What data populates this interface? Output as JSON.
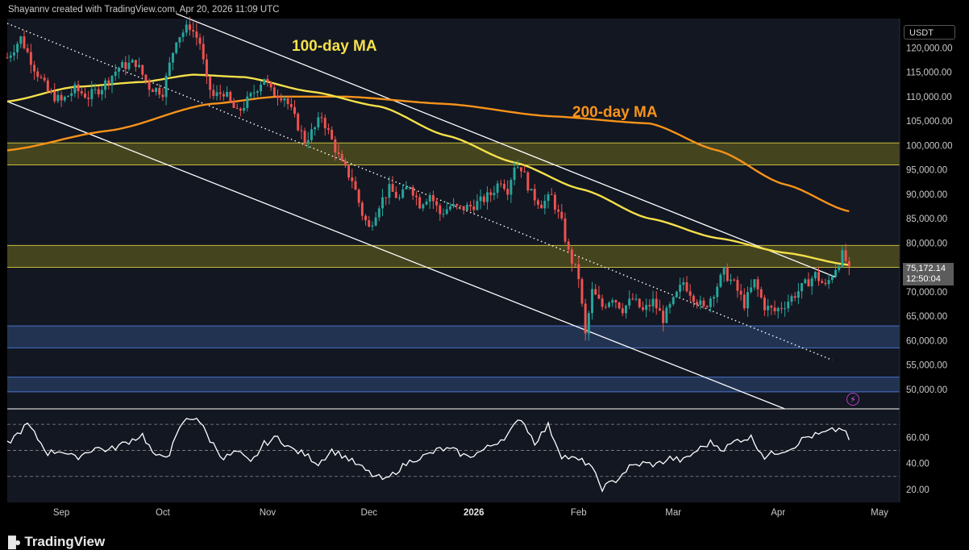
{
  "header": {
    "attribution": "Shayannv created with TradingView.com, Apr 20, 2026 11:09 UTC"
  },
  "brand": {
    "name": "TradingView",
    "logo_icon": "tv-logo-icon"
  },
  "price_axis": {
    "currency": "USDT",
    "last_price": "75,172.14",
    "countdown": "12:50:04"
  },
  "colors": {
    "background": "#131722",
    "frame": "#000000",
    "bull": "#26a69a",
    "bear": "#ef5350",
    "ma100": "#f5e04a",
    "ma200": "#f7931a",
    "supply_zone": "#6e6a1e",
    "demand_zone": "#2f4a7a",
    "rsi": "#ffffff",
    "channel": "#ffffff"
  },
  "chart_data": [
    {
      "type": "candlestick",
      "title": "",
      "currency": "USDT",
      "ylim": [
        46000,
        126000
      ],
      "y_ticks": [
        50000,
        55000,
        60000,
        65000,
        70000,
        75000,
        80000,
        85000,
        90000,
        95000,
        100000,
        105000,
        110000,
        115000,
        120000
      ],
      "y_tick_labels": [
        "50,000.00",
        "55,000.00",
        "60,000.00",
        "65,000.00",
        "70,000.00",
        "75,000.00",
        "80,000.00",
        "85,000.00",
        "90,000.00",
        "95,000.00",
        "100,000.00",
        "105,000.00",
        "110,000.00",
        "115,000.00",
        "120,000.00"
      ],
      "x_ticks": [
        "Sep",
        "Oct",
        "Nov",
        "Dec",
        "2026",
        "Feb",
        "Mar",
        "Apr",
        "May"
      ],
      "x_tick_days": [
        16,
        46,
        77,
        107,
        138,
        169,
        197,
        228,
        258
      ],
      "x_start": "2025-08-16",
      "x_end": "2026-05-06",
      "closes": [
        {
          "d": 0,
          "c": 118000
        },
        {
          "d": 4,
          "c": 122000
        },
        {
          "d": 8,
          "c": 116000
        },
        {
          "d": 12,
          "c": 111000
        },
        {
          "d": 16,
          "c": 109000
        },
        {
          "d": 20,
          "c": 111500
        },
        {
          "d": 24,
          "c": 110000
        },
        {
          "d": 28,
          "c": 112000
        },
        {
          "d": 33,
          "c": 116000
        },
        {
          "d": 38,
          "c": 117000
        },
        {
          "d": 42,
          "c": 112000
        },
        {
          "d": 46,
          "c": 111000
        },
        {
          "d": 50,
          "c": 122000
        },
        {
          "d": 54,
          "c": 124500
        },
        {
          "d": 57,
          "c": 121000
        },
        {
          "d": 59,
          "c": 113000
        },
        {
          "d": 61,
          "c": 110000
        },
        {
          "d": 64,
          "c": 111000
        },
        {
          "d": 68,
          "c": 106500
        },
        {
          "d": 72,
          "c": 110000
        },
        {
          "d": 76,
          "c": 114000
        },
        {
          "d": 78,
          "c": 111000
        },
        {
          "d": 82,
          "c": 110000
        },
        {
          "d": 86,
          "c": 104000
        },
        {
          "d": 88,
          "c": 101000
        },
        {
          "d": 91,
          "c": 103500
        },
        {
          "d": 93,
          "c": 106000
        },
        {
          "d": 96,
          "c": 101000
        },
        {
          "d": 99,
          "c": 96000
        },
        {
          "d": 102,
          "c": 93000
        },
        {
          "d": 105,
          "c": 86000
        },
        {
          "d": 107,
          "c": 83000
        },
        {
          "d": 110,
          "c": 88000
        },
        {
          "d": 113,
          "c": 91000
        },
        {
          "d": 116,
          "c": 89000
        },
        {
          "d": 119,
          "c": 92000
        },
        {
          "d": 122,
          "c": 88000
        },
        {
          "d": 125,
          "c": 90000
        },
        {
          "d": 128,
          "c": 86000
        },
        {
          "d": 131,
          "c": 87500
        },
        {
          "d": 134,
          "c": 87000
        },
        {
          "d": 137,
          "c": 87500
        },
        {
          "d": 140,
          "c": 88500
        },
        {
          "d": 143,
          "c": 90000
        },
        {
          "d": 146,
          "c": 93000
        },
        {
          "d": 148,
          "c": 91000
        },
        {
          "d": 150,
          "c": 96000
        },
        {
          "d": 152,
          "c": 95500
        },
        {
          "d": 155,
          "c": 90000
        },
        {
          "d": 158,
          "c": 88000
        },
        {
          "d": 161,
          "c": 89500
        },
        {
          "d": 164,
          "c": 84000
        },
        {
          "d": 166,
          "c": 78000
        },
        {
          "d": 169,
          "c": 73000
        },
        {
          "d": 171,
          "c": 61000
        },
        {
          "d": 173,
          "c": 70000
        },
        {
          "d": 176,
          "c": 67000
        },
        {
          "d": 179,
          "c": 69000
        },
        {
          "d": 182,
          "c": 66500
        },
        {
          "d": 185,
          "c": 68500
        },
        {
          "d": 188,
          "c": 66000
        },
        {
          "d": 191,
          "c": 68000
        },
        {
          "d": 194,
          "c": 64500
        },
        {
          "d": 197,
          "c": 68000
        },
        {
          "d": 200,
          "c": 72000
        },
        {
          "d": 203,
          "c": 69000
        },
        {
          "d": 206,
          "c": 66500
        },
        {
          "d": 209,
          "c": 70000
        },
        {
          "d": 212,
          "c": 74000
        },
        {
          "d": 215,
          "c": 71500
        },
        {
          "d": 218,
          "c": 67500
        },
        {
          "d": 221,
          "c": 72000
        },
        {
          "d": 224,
          "c": 67000
        },
        {
          "d": 227,
          "c": 66000
        },
        {
          "d": 230,
          "c": 67500
        },
        {
          "d": 233,
          "c": 69500
        },
        {
          "d": 236,
          "c": 71500
        },
        {
          "d": 239,
          "c": 73500
        },
        {
          "d": 242,
          "c": 71000
        },
        {
          "d": 245,
          "c": 75000
        },
        {
          "d": 247,
          "c": 77500
        },
        {
          "d": 249,
          "c": 75172
        }
      ],
      "ma100": [
        {
          "d": 0,
          "v": 109000
        },
        {
          "d": 20,
          "v": 112000
        },
        {
          "d": 40,
          "v": 113000
        },
        {
          "d": 55,
          "v": 114500
        },
        {
          "d": 70,
          "v": 114000
        },
        {
          "d": 90,
          "v": 111000
        },
        {
          "d": 110,
          "v": 108000
        },
        {
          "d": 130,
          "v": 102000
        },
        {
          "d": 150,
          "v": 96500
        },
        {
          "d": 170,
          "v": 91000
        },
        {
          "d": 190,
          "v": 85000
        },
        {
          "d": 210,
          "v": 81000
        },
        {
          "d": 230,
          "v": 78000
        },
        {
          "d": 249,
          "v": 75500
        }
      ],
      "ma200": [
        {
          "d": 0,
          "v": 99000
        },
        {
          "d": 30,
          "v": 103000
        },
        {
          "d": 60,
          "v": 108500
        },
        {
          "d": 80,
          "v": 110000
        },
        {
          "d": 100,
          "v": 110000
        },
        {
          "d": 130,
          "v": 108500
        },
        {
          "d": 160,
          "v": 106000
        },
        {
          "d": 190,
          "v": 104500
        },
        {
          "d": 210,
          "v": 99000
        },
        {
          "d": 230,
          "v": 92000
        },
        {
          "d": 249,
          "v": 86500
        }
      ],
      "channel": {
        "upper": [
          {
            "d": 50,
            "v": 127000
          },
          {
            "d": 245,
            "v": 73000
          }
        ],
        "lower": [
          {
            "d": 0,
            "v": 109000
          },
          {
            "d": 230,
            "v": 46000
          }
        ],
        "mid_dotted": [
          {
            "d": 0,
            "v": 125000
          },
          {
            "d": 244,
            "v": 56000
          }
        ]
      },
      "zones": [
        {
          "kind": "supply",
          "from": 96000,
          "to": 100500
        },
        {
          "kind": "supply",
          "from": 75000,
          "to": 79500
        },
        {
          "kind": "demand",
          "from": 58500,
          "to": 63000
        },
        {
          "kind": "demand",
          "from": 49500,
          "to": 52500
        }
      ],
      "annotations": [
        {
          "text": "100-day MA",
          "color": "#f5e04a"
        },
        {
          "text": "200-day MA",
          "color": "#f7931a"
        }
      ]
    },
    {
      "type": "line",
      "title": "",
      "ylim": [
        10,
        80
      ],
      "y_tick_labels": [
        "20.00",
        "40.00",
        "60.00"
      ],
      "y_ticks": [
        20,
        40,
        60
      ],
      "guides": [
        30,
        50,
        70
      ],
      "x": [
        0,
        6,
        12,
        16,
        20,
        26,
        30,
        36,
        40,
        44,
        48,
        52,
        56,
        60,
        64,
        68,
        72,
        76,
        80,
        84,
        88,
        92,
        96,
        100,
        104,
        108,
        112,
        116,
        120,
        124,
        128,
        132,
        136,
        140,
        144,
        148,
        152,
        156,
        160,
        164,
        168,
        172,
        176,
        180,
        184,
        188,
        192,
        196,
        200,
        204,
        208,
        212,
        216,
        220,
        224,
        228,
        232,
        236,
        240,
        244,
        247,
        249
      ],
      "values": [
        55,
        70,
        48,
        50,
        44,
        52,
        50,
        57,
        62,
        44,
        48,
        72,
        76,
        58,
        44,
        49,
        40,
        55,
        60,
        51,
        47,
        40,
        50,
        45,
        38,
        31,
        27,
        36,
        43,
        46,
        51,
        50,
        45,
        49,
        55,
        62,
        75,
        56,
        69,
        46,
        43,
        40,
        21,
        27,
        37,
        40,
        39,
        44,
        42,
        50,
        56,
        51,
        58,
        60,
        45,
        49,
        52,
        60,
        62,
        65,
        67,
        58
      ]
    }
  ]
}
